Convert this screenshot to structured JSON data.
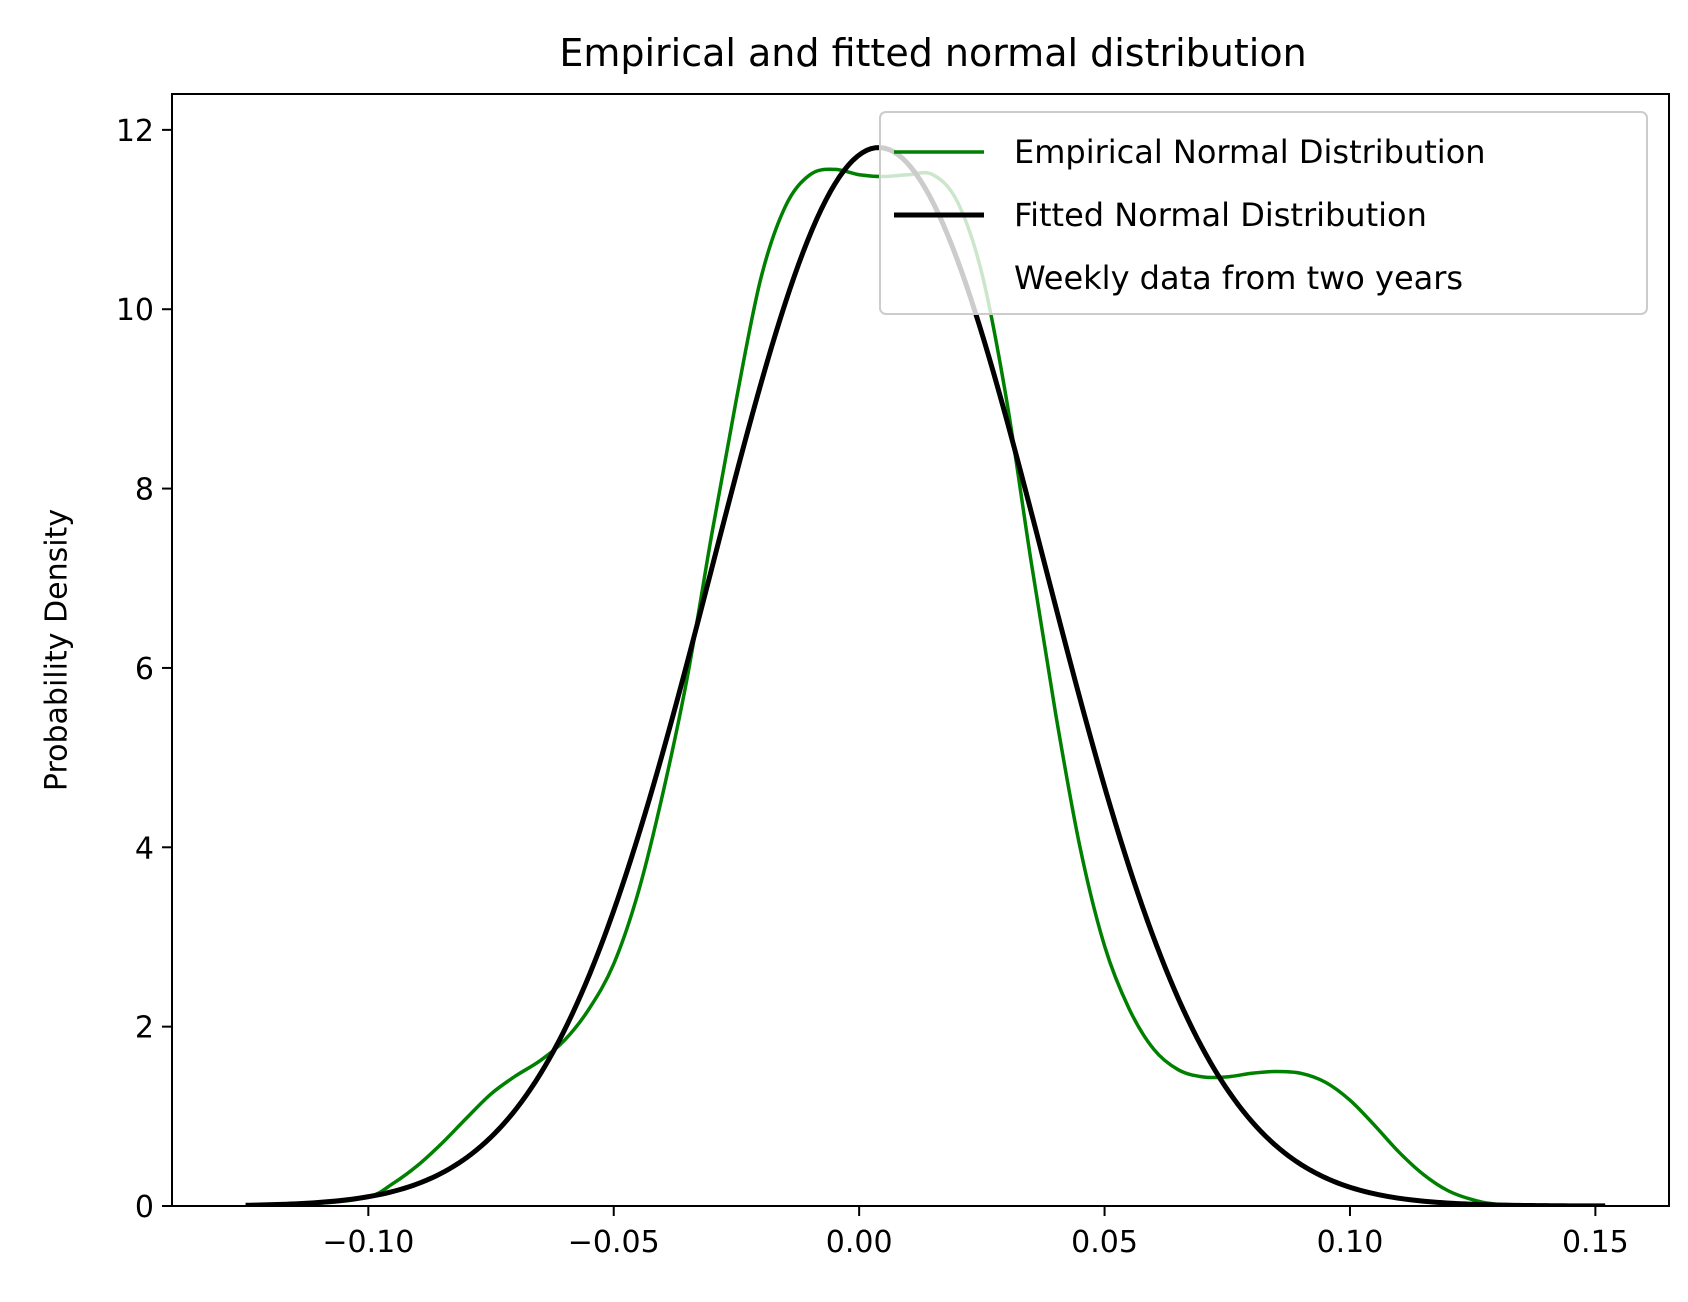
{
  "chart_data": {
    "type": "line",
    "title": "Empirical and fitted normal distribution",
    "xlabel": "",
    "ylabel": "Probability Density",
    "xlim": [
      -0.14,
      0.165
    ],
    "ylim": [
      0,
      12.4
    ],
    "x_ticks": [
      -0.1,
      -0.05,
      0.0,
      0.05,
      0.1,
      0.15
    ],
    "x_tick_labels": [
      "−0.10",
      "−0.05",
      "0.00",
      "0.05",
      "0.10",
      "0.15"
    ],
    "y_ticks": [
      0,
      2,
      4,
      6,
      8,
      10,
      12
    ],
    "y_tick_labels": [
      "0",
      "2",
      "4",
      "6",
      "8",
      "10",
      "12"
    ],
    "grid": false,
    "legend_position": "top-right",
    "legend_entries": [
      "Empirical Normal Distribution",
      "Fitted Normal Distribution",
      "Weekly data from two years"
    ],
    "series": [
      {
        "name": "Empirical Normal Distribution",
        "color": "#008000",
        "points": [
          [
            -0.125,
            0.0
          ],
          [
            -0.11,
            0.03
          ],
          [
            -0.1,
            0.1
          ],
          [
            -0.095,
            0.25
          ],
          [
            -0.09,
            0.45
          ],
          [
            -0.085,
            0.7
          ],
          [
            -0.08,
            0.98
          ],
          [
            -0.075,
            1.25
          ],
          [
            -0.07,
            1.45
          ],
          [
            -0.065,
            1.62
          ],
          [
            -0.06,
            1.85
          ],
          [
            -0.055,
            2.2
          ],
          [
            -0.05,
            2.7
          ],
          [
            -0.045,
            3.5
          ],
          [
            -0.04,
            4.6
          ],
          [
            -0.035,
            5.9
          ],
          [
            -0.03,
            7.5
          ],
          [
            -0.025,
            9.0
          ],
          [
            -0.02,
            10.35
          ],
          [
            -0.015,
            11.15
          ],
          [
            -0.01,
            11.5
          ],
          [
            -0.005,
            11.56
          ],
          [
            0.0,
            11.5
          ],
          [
            0.005,
            11.48
          ],
          [
            0.01,
            11.5
          ],
          [
            0.015,
            11.5
          ],
          [
            0.02,
            11.2
          ],
          [
            0.025,
            10.4
          ],
          [
            0.03,
            9.0
          ],
          [
            0.035,
            7.2
          ],
          [
            0.04,
            5.5
          ],
          [
            0.045,
            4.0
          ],
          [
            0.05,
            2.9
          ],
          [
            0.055,
            2.2
          ],
          [
            0.06,
            1.75
          ],
          [
            0.065,
            1.52
          ],
          [
            0.07,
            1.44
          ],
          [
            0.075,
            1.44
          ],
          [
            0.08,
            1.48
          ],
          [
            0.085,
            1.5
          ],
          [
            0.09,
            1.48
          ],
          [
            0.095,
            1.38
          ],
          [
            0.1,
            1.18
          ],
          [
            0.105,
            0.9
          ],
          [
            0.11,
            0.6
          ],
          [
            0.115,
            0.35
          ],
          [
            0.12,
            0.17
          ],
          [
            0.125,
            0.07
          ],
          [
            0.13,
            0.02
          ],
          [
            0.14,
            0.0
          ]
        ]
      },
      {
        "name": "Fitted Normal Distribution",
        "color": "#000000",
        "mean": 0.004,
        "std": 0.0338,
        "x_range": [
          -0.125,
          0.152
        ]
      }
    ]
  }
}
